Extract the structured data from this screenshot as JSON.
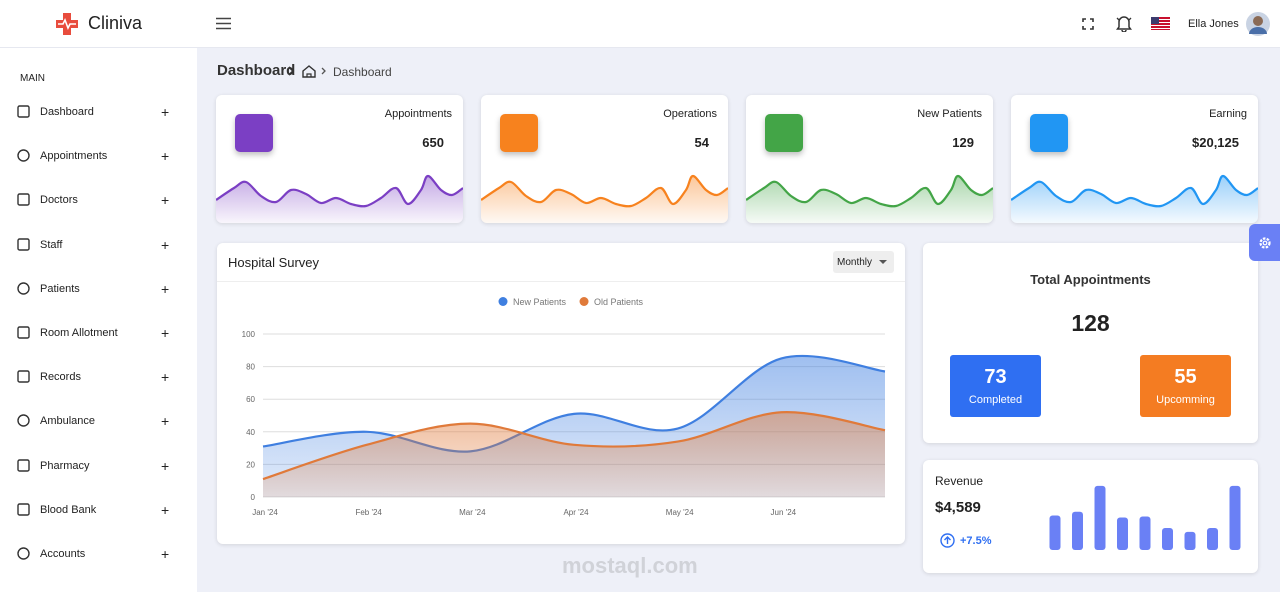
{
  "brand": "Cliniva",
  "header": {
    "user": "Ella Jones"
  },
  "sidebar": {
    "section": "MAIN",
    "expand": "+",
    "items": [
      "Dashboard",
      "Appointments",
      "Doctors",
      "Staff",
      "Patients",
      "Room Allotment",
      "Records",
      "Ambulance",
      "Pharmacy",
      "Blood Bank",
      "Accounts"
    ]
  },
  "breadcrumb": {
    "title": "Dashboard",
    "current": "Dashboard"
  },
  "stats": [
    {
      "label": "Appointments",
      "value": "650"
    },
    {
      "label": "Operations",
      "value": "54"
    },
    {
      "label": "New Patients",
      "value": "129"
    },
    {
      "label": "Earning",
      "value": "$20,125"
    }
  ],
  "survey_filter": "Monthly",
  "chart_data": [
    {
      "type": "area",
      "title": "Hospital Survey",
      "categories": [
        "Jan '24",
        "Feb '24",
        "Mar '24",
        "Apr '24",
        "May '24",
        "Jun '24",
        null
      ],
      "series": [
        {
          "name": "New Patients",
          "color": "#3f7fe0",
          "values": [
            31,
            40,
            28,
            51,
            42,
            85,
            77
          ]
        },
        {
          "name": "Old Patients",
          "color": "#e07a3a",
          "values": [
            11,
            32,
            45,
            32,
            34,
            52,
            41
          ]
        }
      ],
      "ylim": [
        0,
        100
      ],
      "yticks": [
        0,
        20,
        40,
        60,
        80,
        100
      ],
      "grid": true,
      "legend": "top"
    },
    {
      "type": "bar",
      "color": "#6a80f5",
      "values": [
        36,
        40,
        67,
        34,
        35,
        23,
        19,
        23,
        67
      ],
      "ylim": [
        0,
        70
      ]
    }
  ],
  "total_appointments": {
    "title": "Total Appointments",
    "total": "128",
    "completed": {
      "value": "73",
      "label": "Completed"
    },
    "upcoming": {
      "value": "55",
      "label": "Upcomming"
    }
  },
  "revenue": {
    "title": "Revenue",
    "amount": "$4,589",
    "change": "+7.5%"
  },
  "watermark": "mostaql.com"
}
